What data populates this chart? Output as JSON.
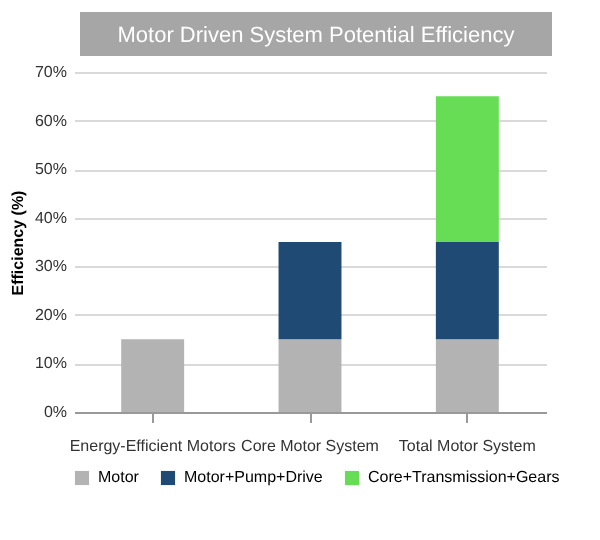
{
  "chart_data": {
    "type": "bar",
    "title": "Motor Driven System Potential Efficiency",
    "ylabel": "Efficiency (%)",
    "categories": [
      "Energy-Efficient Motors",
      "Core Motor System",
      "Total Motor System"
    ],
    "stacked": true,
    "series": [
      {
        "name": "Motor",
        "color": "#b3b3b3",
        "values": [
          15,
          15,
          15
        ]
      },
      {
        "name": "Motor+Pump+Drive",
        "color": "#1f4a73",
        "values": [
          null,
          20,
          20
        ]
      },
      {
        "name": "Core+Transmission+Gears",
        "color": "#66dd55",
        "values": [
          null,
          null,
          30
        ]
      }
    ],
    "ylim": [
      0,
      70
    ],
    "yticks": [
      {
        "value": 0,
        "label": "0%"
      },
      {
        "value": 10,
        "label": "10%"
      },
      {
        "value": 20,
        "label": "20%"
      },
      {
        "value": 30,
        "label": "30%"
      },
      {
        "value": 40,
        "label": "40%"
      },
      {
        "value": 50,
        "label": "50%"
      },
      {
        "value": 60,
        "label": "60%"
      },
      {
        "value": 70,
        "label": "70%"
      }
    ],
    "grid": "y",
    "legend": "bottom"
  }
}
